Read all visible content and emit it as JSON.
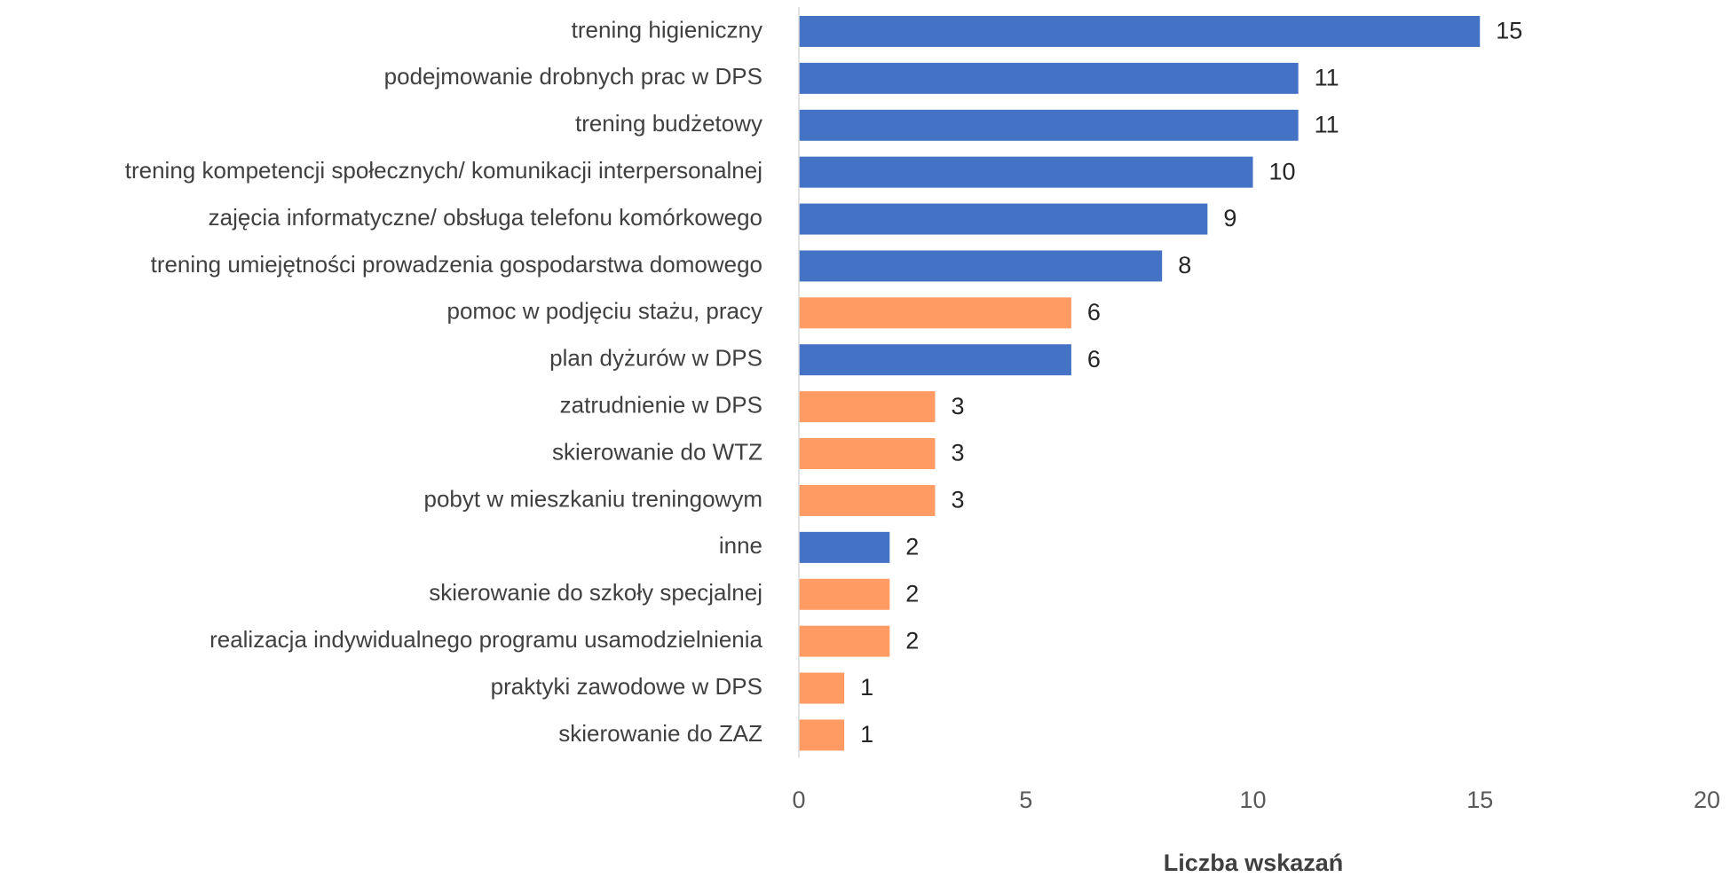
{
  "chart_data": {
    "type": "barh",
    "categories": [
      "trening higieniczny",
      "podejmowanie drobnych prac w DPS",
      "trening budżetowy",
      "trening kompetencji społecznych/ komunikacji interpersonalnej",
      "zajęcia informatyczne/ obsługa telefonu komórkowego",
      "trening umiejętności prowadzenia gospodarstwa domowego",
      "pomoc w podjęciu stażu, pracy",
      "plan dyżurów w DPS",
      "zatrudnienie w DPS",
      "skierowanie do WTZ",
      "pobyt w mieszkaniu treningowym",
      "inne",
      "skierowanie do szkoły specjalnej",
      "realizacja indywidualnego programu usamodzielnienia",
      "praktyki zawodowe w DPS",
      "skierowanie do ZAZ"
    ],
    "values": [
      15,
      11,
      11,
      10,
      9,
      8,
      6,
      6,
      3,
      3,
      3,
      2,
      2,
      2,
      1,
      1
    ],
    "colors": [
      "#4472c4",
      "#4472c4",
      "#4472c4",
      "#4472c4",
      "#4472c4",
      "#4472c4",
      "#ff9b63",
      "#4472c4",
      "#ff9b63",
      "#ff9b63",
      "#ff9b63",
      "#4472c4",
      "#ff9b63",
      "#ff9b63",
      "#ff9b63",
      "#ff9b63"
    ],
    "xlim": [
      0,
      20
    ],
    "xticks": [
      0,
      5,
      10,
      15,
      20
    ],
    "xlabel": "Liczba wskazań",
    "grid": false
  }
}
